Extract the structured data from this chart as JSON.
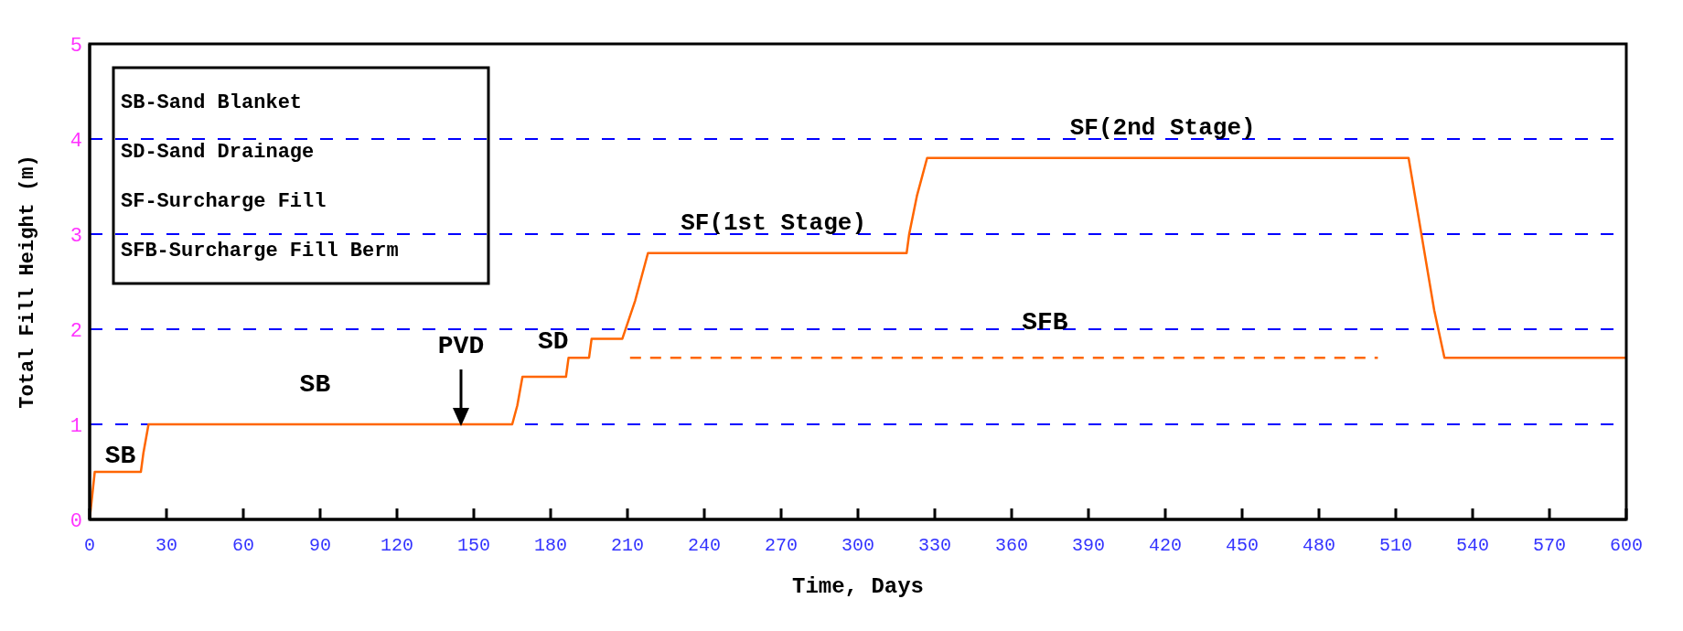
{
  "chart_data": {
    "type": "line",
    "xlabel": "Time, Days",
    "ylabel": "Total Fill Height (m)",
    "xlim": [
      0,
      600
    ],
    "xticks": [
      0,
      30,
      60,
      90,
      120,
      150,
      180,
      210,
      240,
      270,
      300,
      330,
      360,
      390,
      420,
      450,
      480,
      510,
      540,
      570,
      600
    ],
    "ylim": [
      0,
      5
    ],
    "yticks": [
      0,
      1,
      2,
      3,
      4,
      5
    ],
    "grid": "y",
    "marker": "none",
    "series": [
      {
        "color": "#ff6600",
        "line_style": "solid",
        "x": [
          0,
          1,
          2,
          20,
          21,
          23,
          165,
          167,
          169,
          186,
          187,
          195,
          196,
          208,
          213,
          218,
          319,
          320,
          323,
          325,
          327,
          515,
          520,
          525,
          529,
          600
        ],
        "values": [
          0,
          0.25,
          0.5,
          0.5,
          0.7,
          1.0,
          1.0,
          1.2,
          1.5,
          1.5,
          1.7,
          1.7,
          1.9,
          1.9,
          2.3,
          2.8,
          2.8,
          3.0,
          3.4,
          3.6,
          3.8,
          3.8,
          3.0,
          2.2,
          1.7,
          1.7
        ]
      },
      {
        "color": "#ff6600",
        "line_style": "dashed",
        "x": [
          211,
          503
        ],
        "values": [
          1.7,
          1.7
        ]
      }
    ],
    "annotations": [
      "SB-Sand Blanket",
      "SD-Sand Drainage",
      "SF-Surcharge Fill",
      "SFB-Surcharge Fill Berm",
      "SB",
      "SB",
      "PVD",
      "SD",
      "SF(1st Stage)",
      "SF(2nd Stage)",
      "SFB"
    ]
  }
}
